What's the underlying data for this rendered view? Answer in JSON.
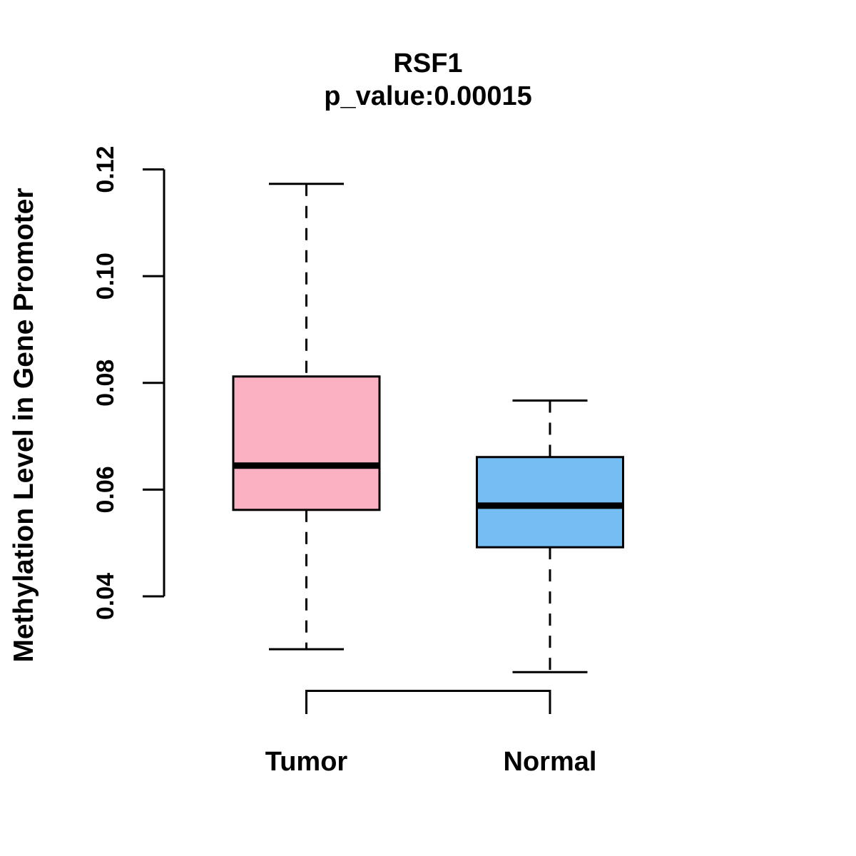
{
  "chart_data": {
    "type": "boxplot",
    "title": "RSF1",
    "subtitle": "p_value:0.00015",
    "ylabel": "Methylation Level in Gene Promoter",
    "xlabel": "",
    "categories": [
      "Tumor",
      "Normal"
    ],
    "series": [
      {
        "name": "Tumor",
        "fill_color": "#FCB1C3",
        "whisker_min": 0.0301,
        "q1": 0.0562,
        "median": 0.0645,
        "q3": 0.0812,
        "whisker_max": 0.1173
      },
      {
        "name": "Normal",
        "fill_color": "#74BEF4",
        "whisker_min": 0.0258,
        "q1": 0.0492,
        "median": 0.057,
        "q3": 0.0661,
        "whisker_max": 0.0767
      }
    ],
    "y_axis": {
      "ticks": [
        0.04,
        0.06,
        0.08,
        0.1,
        0.12
      ],
      "tick_labels": [
        "0.04",
        "0.06",
        "0.08",
        "0.10",
        "0.12"
      ],
      "axis_range": [
        0.04,
        0.12
      ],
      "tick_label_orientation": "vertical"
    },
    "grid": false,
    "legend": "none",
    "styles": {
      "box_border_color": "#000000",
      "median_color": "#000000",
      "whisker_style": "dashed",
      "background": "#ffffff",
      "text_color": "#000000"
    }
  }
}
